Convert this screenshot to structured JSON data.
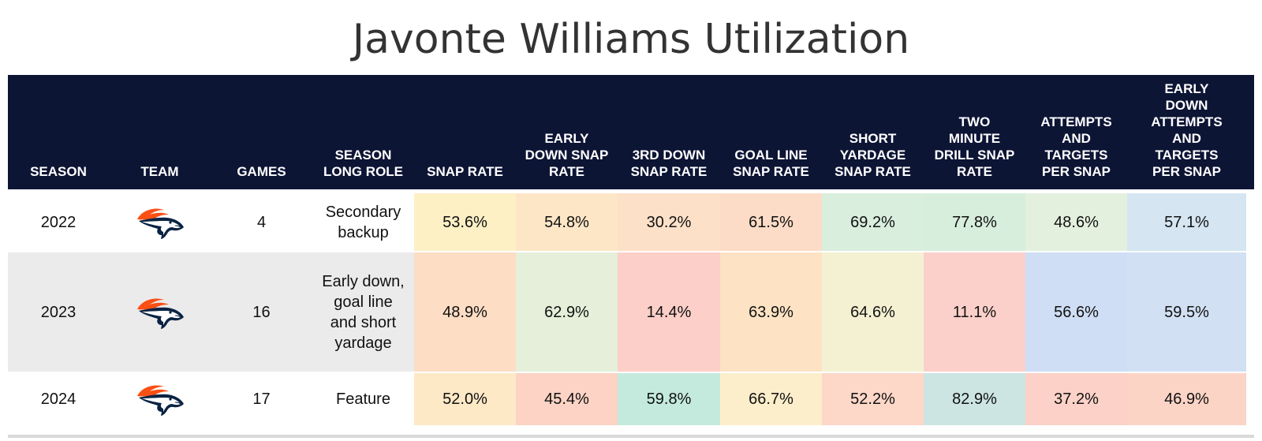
{
  "title": "Javonte Williams Utilization",
  "chart_data": {
    "type": "table",
    "title": "Javonte Williams Utilization",
    "columns": [
      "SEASON",
      "TEAM",
      "GAMES",
      "SEASON LONG ROLE",
      "SNAP RATE",
      "EARLY DOWN SNAP RATE",
      "3RD DOWN SNAP RATE",
      "GOAL LINE SNAP RATE",
      "SHORT YARDAGE SNAP RATE",
      "TWO MINUTE DRILL SNAP RATE",
      "ATTEMPTS AND TARGETS PER SNAP",
      "EARLY DOWN ATTEMPTS AND TARGETS PER SNAP"
    ],
    "rows": [
      {
        "season": "2022",
        "team_icon": "broncos-logo-icon",
        "games": "4",
        "role": "Secondary backup",
        "values": [
          "53.6%",
          "54.8%",
          "30.2%",
          "61.5%",
          "69.2%",
          "77.8%",
          "48.6%",
          "57.1%"
        ],
        "colors": [
          "#fdf0c4",
          "#fde6c6",
          "#fde0c8",
          "#fcdcc6",
          "#d9eedd",
          "#d7eedc",
          "#e3f0de",
          "#d5e5f2"
        ]
      },
      {
        "season": "2023",
        "team_icon": "broncos-logo-icon",
        "games": "16",
        "role": "Early down, goal line and short yardage",
        "values": [
          "48.9%",
          "62.9%",
          "14.4%",
          "63.9%",
          "64.6%",
          "11.1%",
          "56.6%",
          "59.5%"
        ],
        "colors": [
          "#fdddc4",
          "#e6efd9",
          "#fccfc8",
          "#fde2c4",
          "#f4f1d2",
          "#fcd0ca",
          "#cfdef4",
          "#d1e0f3"
        ]
      },
      {
        "season": "2024",
        "team_icon": "broncos-logo-icon",
        "games": "17",
        "role": "Feature",
        "values": [
          "52.0%",
          "45.4%",
          "59.8%",
          "66.7%",
          "52.2%",
          "82.9%",
          "37.2%",
          "46.9%"
        ],
        "colors": [
          "#fde9c6",
          "#fcd3c4",
          "#c4eadd",
          "#fdeecb",
          "#fdd7c8",
          "#cce5e3",
          "#fcd1c8",
          "#fcd4c6"
        ]
      }
    ]
  }
}
